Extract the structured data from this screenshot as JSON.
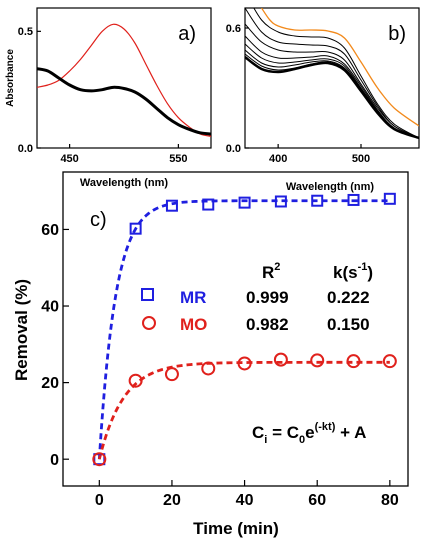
{
  "chart_data": [
    {
      "panel_label": "a)",
      "type": "line",
      "xlabel": "Wavelength (nm)",
      "ylabel": "Absorbance",
      "xlim": [
        420,
        580
      ],
      "ylim": [
        0,
        0.6
      ],
      "xticks": [
        "450",
        "550"
      ],
      "xtick_values": [
        450,
        550
      ],
      "yticks": [
        "0.0",
        "0.5"
      ],
      "ytick_values": [
        0,
        0.5
      ],
      "series": [
        {
          "color": "#e0211c",
          "width": 1.2,
          "x": [
            420,
            430,
            440,
            450,
            460,
            470,
            480,
            490,
            500,
            510,
            520,
            530,
            540,
            550,
            560,
            570,
            580
          ],
          "y": [
            0.26,
            0.27,
            0.29,
            0.33,
            0.38,
            0.44,
            0.5,
            0.53,
            0.51,
            0.45,
            0.36,
            0.27,
            0.19,
            0.13,
            0.09,
            0.06,
            0.05
          ]
        },
        {
          "color": "#000000",
          "width": 3,
          "x": [
            420,
            430,
            440,
            450,
            460,
            470,
            480,
            490,
            500,
            510,
            520,
            530,
            540,
            550,
            560,
            570,
            580
          ],
          "y": [
            0.34,
            0.33,
            0.3,
            0.27,
            0.25,
            0.245,
            0.25,
            0.26,
            0.255,
            0.24,
            0.21,
            0.17,
            0.13,
            0.1,
            0.08,
            0.065,
            0.06
          ]
        }
      ]
    },
    {
      "panel_label": "b)",
      "type": "line",
      "xlabel": "Wavelength (nm)",
      "ylabel": "",
      "xlim": [
        360,
        570
      ],
      "ylim": [
        0,
        0.7
      ],
      "xticks": [
        "400",
        "500"
      ],
      "xtick_values": [
        400,
        500
      ],
      "yticks": [
        "0.0",
        "0.6"
      ],
      "ytick_values": [
        0,
        0.6
      ],
      "series": [
        {
          "color": "#000000",
          "width": 1,
          "x": [
            360,
            380,
            400,
            420,
            440,
            460,
            480,
            500,
            520,
            540,
            570
          ],
          "y": [
            0.78,
            0.64,
            0.58,
            0.56,
            0.555,
            0.55,
            0.5,
            0.36,
            0.22,
            0.12,
            0.05
          ]
        },
        {
          "color": "#000000",
          "width": 1,
          "x": [
            360,
            380,
            400,
            420,
            440,
            460,
            480,
            500,
            520,
            540,
            570
          ],
          "y": [
            0.7,
            0.58,
            0.53,
            0.52,
            0.515,
            0.51,
            0.47,
            0.34,
            0.21,
            0.11,
            0.05
          ]
        },
        {
          "color": "#000000",
          "width": 1,
          "x": [
            360,
            380,
            400,
            420,
            440,
            460,
            480,
            500,
            520,
            540,
            570
          ],
          "y": [
            0.62,
            0.53,
            0.49,
            0.48,
            0.48,
            0.48,
            0.44,
            0.32,
            0.2,
            0.11,
            0.05
          ]
        },
        {
          "color": "#000000",
          "width": 1,
          "x": [
            360,
            380,
            400,
            420,
            440,
            460,
            480,
            500,
            520,
            540,
            570
          ],
          "y": [
            0.56,
            0.48,
            0.45,
            0.45,
            0.455,
            0.46,
            0.42,
            0.31,
            0.19,
            0.1,
            0.05
          ]
        },
        {
          "color": "#000000",
          "width": 1,
          "x": [
            360,
            380,
            400,
            420,
            440,
            460,
            480,
            500,
            520,
            540,
            570
          ],
          "y": [
            0.52,
            0.45,
            0.425,
            0.43,
            0.44,
            0.445,
            0.41,
            0.3,
            0.185,
            0.1,
            0.05
          ]
        },
        {
          "color": "#000000",
          "width": 1,
          "x": [
            360,
            380,
            400,
            420,
            440,
            460,
            480,
            500,
            520,
            540,
            570
          ],
          "y": [
            0.49,
            0.425,
            0.405,
            0.415,
            0.43,
            0.435,
            0.4,
            0.295,
            0.18,
            0.1,
            0.05
          ]
        },
        {
          "color": "#000000",
          "width": 1,
          "x": [
            360,
            380,
            400,
            420,
            440,
            460,
            480,
            500,
            520,
            540,
            570
          ],
          "y": [
            0.47,
            0.41,
            0.39,
            0.4,
            0.42,
            0.43,
            0.395,
            0.29,
            0.18,
            0.095,
            0.05
          ]
        },
        {
          "color": "#000000",
          "width": 2.5,
          "x": [
            360,
            380,
            400,
            420,
            440,
            460,
            480,
            500,
            520,
            540,
            570
          ],
          "y": [
            0.455,
            0.395,
            0.38,
            0.395,
            0.415,
            0.425,
            0.39,
            0.285,
            0.175,
            0.095,
            0.05
          ]
        },
        {
          "color": "#f28a1c",
          "width": 1.3,
          "x": [
            380,
            390,
            400,
            420,
            440,
            460,
            480,
            500,
            520,
            540,
            570
          ],
          "y": [
            0.7,
            0.64,
            0.61,
            0.59,
            0.59,
            0.585,
            0.55,
            0.43,
            0.3,
            0.2,
            0.11
          ]
        }
      ]
    },
    {
      "panel_label": "c)",
      "type": "scatter",
      "xlabel": "Time (min)",
      "ylabel": "Removal (%)",
      "xlim": [
        -10,
        85
      ],
      "ylim": [
        -7,
        75
      ],
      "xticks": [
        "0",
        "20",
        "40",
        "60",
        "80"
      ],
      "xtick_values": [
        0,
        20,
        40,
        60,
        80
      ],
      "yticks": [
        "0",
        "20",
        "40",
        "60"
      ],
      "ytick_values": [
        0,
        20,
        40,
        60
      ],
      "series": [
        {
          "name": "MR",
          "marker": "square",
          "color": "#1f1fe0",
          "x": [
            0,
            10,
            20,
            30,
            40,
            50,
            60,
            70,
            80
          ],
          "y": [
            0,
            60.2,
            66.2,
            66.5,
            67,
            67.3,
            67.5,
            67.7,
            68
          ],
          "fit": {
            "A": 67.5,
            "k": 0.222
          }
        },
        {
          "name": "MO",
          "marker": "circle",
          "color": "#e0211c",
          "x": [
            0,
            10,
            20,
            30,
            40,
            50,
            60,
            70,
            80
          ],
          "y": [
            0,
            20.5,
            22.2,
            23.7,
            25,
            26,
            25.8,
            25.6,
            25.6
          ],
          "fit": {
            "A": 25.3,
            "k": 0.15
          }
        }
      ],
      "table": {
        "r2_header": "R",
        "r2_sup": "2",
        "k_header": "k(s",
        "k_sup": "-1",
        "k_close": ")",
        "rows": [
          {
            "label": "MR",
            "r2": "0.999",
            "k": "0.222"
          },
          {
            "label": "MO",
            "r2": "0.982",
            "k": "0.150"
          }
        ]
      },
      "equation": {
        "c": "C",
        "sub_i": "i",
        "eq": " = C",
        "sub_0": "0",
        "e": "e",
        "sup": "(-kt)",
        "tail": " + A"
      }
    }
  ]
}
